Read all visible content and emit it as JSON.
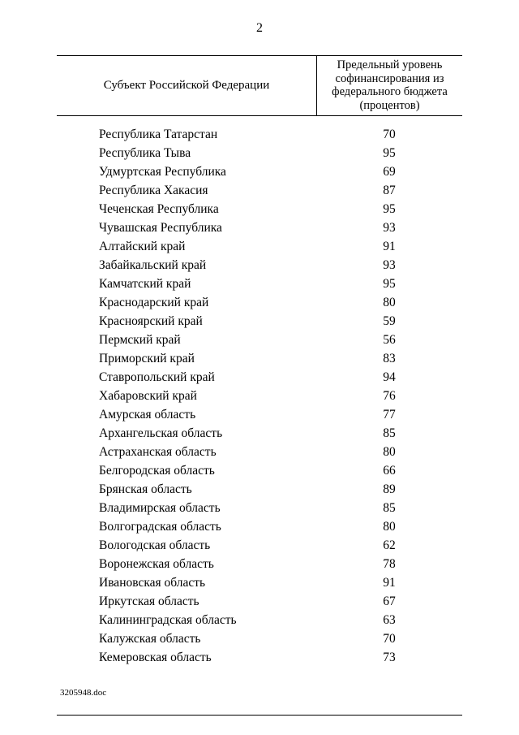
{
  "page": {
    "number": "2",
    "footer": "3205948.doc"
  },
  "table": {
    "header": {
      "col1": "Субъект Российской Федерации",
      "col2_lines": [
        "Предельный уровень",
        "софинансирования из",
        "федерального бюджета",
        "(процентов)"
      ]
    },
    "rows": [
      {
        "region": "Республика Татарстан",
        "value": 70
      },
      {
        "region": "Республика Тыва",
        "value": 95
      },
      {
        "region": "Удмуртская Республика",
        "value": 69
      },
      {
        "region": "Республика Хакасия",
        "value": 87
      },
      {
        "region": "Чеченская Республика",
        "value": 95
      },
      {
        "region": "Чувашская Республика",
        "value": 93
      },
      {
        "region": "Алтайский край",
        "value": 91
      },
      {
        "region": "Забайкальский край",
        "value": 93
      },
      {
        "region": "Камчатский край",
        "value": 95
      },
      {
        "region": "Краснодарский край",
        "value": 80
      },
      {
        "region": "Красноярский край",
        "value": 59
      },
      {
        "region": "Пермский край",
        "value": 56
      },
      {
        "region": "Приморский край",
        "value": 83
      },
      {
        "region": "Ставропольский край",
        "value": 94
      },
      {
        "region": "Хабаровский край",
        "value": 76
      },
      {
        "region": "Амурская область",
        "value": 77
      },
      {
        "region": "Архангельская область",
        "value": 85
      },
      {
        "region": "Астраханская область",
        "value": 80
      },
      {
        "region": "Белгородская область",
        "value": 66
      },
      {
        "region": "Брянская область",
        "value": 89
      },
      {
        "region": "Владимирская область",
        "value": 85
      },
      {
        "region": "Волгоградская область",
        "value": 80
      },
      {
        "region": "Вологодская область",
        "value": 62
      },
      {
        "region": "Воронежская область",
        "value": 78
      },
      {
        "region": "Ивановская область",
        "value": 91
      },
      {
        "region": "Иркутская область",
        "value": 67
      },
      {
        "region": "Калининградская область",
        "value": 63
      },
      {
        "region": "Калужская область",
        "value": 70
      },
      {
        "region": "Кемеровская область",
        "value": 73
      }
    ]
  }
}
